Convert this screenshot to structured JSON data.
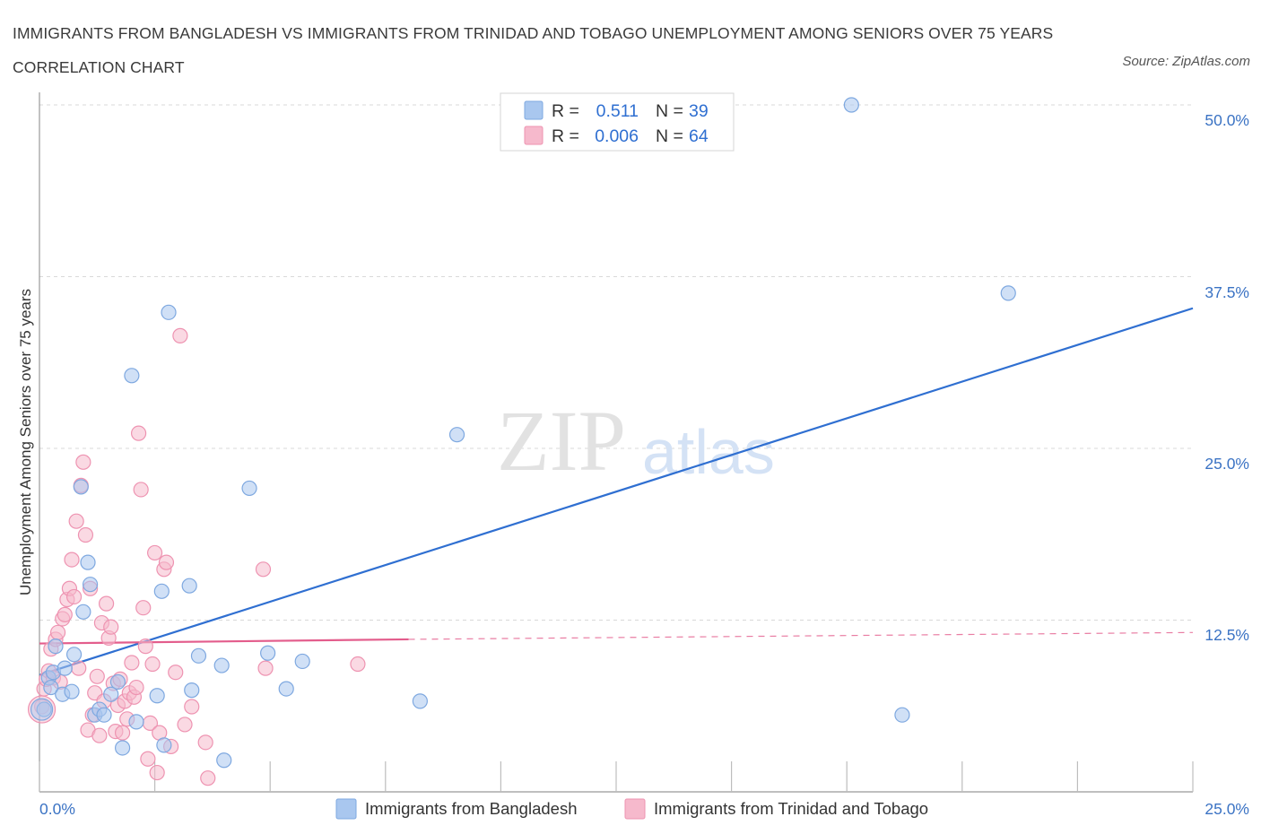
{
  "title": "IMMIGRANTS FROM BANGLADESH VS IMMIGRANTS FROM TRINIDAD AND TOBAGO UNEMPLOYMENT AMONG SENIORS OVER 75 YEARS CORRELATION CHART",
  "source": "Source: ZipAtlas.com",
  "watermark": {
    "zip": "ZIP",
    "atlas": "atlas"
  },
  "colors": {
    "blue": "#2f6fd1",
    "blue_fill": "#a9c7ef",
    "blue_stroke": "#7ea8e0",
    "pink": "#e35d8c",
    "pink_fill": "#f6b9cc",
    "pink_stroke": "#ee93b1",
    "grid": "#d9d9d9",
    "tick_text": "#3b73c4"
  },
  "legend": {
    "rows": [
      {
        "r_label": "R =",
        "r_value": "0.511",
        "n_label": "N =",
        "n_value": "39",
        "series": "bangladesh"
      },
      {
        "r_label": "R =",
        "r_value": "0.006",
        "n_label": "N =",
        "n_value": "64",
        "series": "trinidad"
      }
    ]
  },
  "bottom_legend": [
    "Immigrants from Bangladesh",
    "Immigrants from Trinidad and Tobago"
  ],
  "chart_data": {
    "type": "scatter",
    "title": "IMMIGRANTS FROM BANGLADESH VS IMMIGRANTS FROM TRINIDAD AND TOBAGO UNEMPLOYMENT AMONG SENIORS OVER 75 YEARS CORRELATION CHART",
    "xlabel": "",
    "ylabel": "Unemployment Among Seniors over 75 years",
    "xlim": [
      0,
      25
    ],
    "ylim": [
      0,
      50
    ],
    "x_tick_labels": [
      "0.0%",
      "25.0%"
    ],
    "y_tick_labels": [
      "12.5%",
      "25.0%",
      "37.5%",
      "50.0%"
    ],
    "y_tick_values": [
      12.5,
      25,
      37.5,
      50
    ],
    "series": [
      {
        "name": "Immigrants from Bangladesh",
        "color": "blue",
        "R": 0.511,
        "N": 39,
        "trend": {
          "x": [
            0,
            25
          ],
          "y": [
            8.5,
            35.2
          ],
          "style": "solid"
        },
        "points": [
          [
            0.1,
            6.0
          ],
          [
            0.2,
            8.3
          ],
          [
            0.25,
            7.6
          ],
          [
            0.3,
            8.7
          ],
          [
            0.35,
            10.6
          ],
          [
            0.5,
            7.1
          ],
          [
            0.55,
            9.0
          ],
          [
            0.7,
            7.3
          ],
          [
            0.75,
            10.0
          ],
          [
            0.9,
            22.2
          ],
          [
            0.95,
            13.1
          ],
          [
            1.05,
            16.7
          ],
          [
            1.1,
            15.1
          ],
          [
            1.2,
            5.6
          ],
          [
            1.3,
            6.0
          ],
          [
            1.4,
            5.6
          ],
          [
            1.55,
            7.1
          ],
          [
            1.7,
            8.0
          ],
          [
            1.8,
            3.2
          ],
          [
            2.0,
            30.3
          ],
          [
            2.1,
            5.1
          ],
          [
            2.55,
            7.0
          ],
          [
            2.65,
            14.6
          ],
          [
            2.7,
            3.4
          ],
          [
            2.8,
            34.9
          ],
          [
            3.25,
            15.0
          ],
          [
            3.3,
            7.4
          ],
          [
            3.45,
            9.9
          ],
          [
            3.95,
            9.2
          ],
          [
            4.0,
            2.3
          ],
          [
            4.55,
            22.1
          ],
          [
            4.95,
            10.1
          ],
          [
            5.35,
            7.5
          ],
          [
            5.7,
            9.5
          ],
          [
            8.25,
            6.6
          ],
          [
            9.05,
            26.0
          ],
          [
            17.6,
            50.0
          ],
          [
            18.7,
            5.6
          ],
          [
            21.0,
            36.3
          ]
        ]
      },
      {
        "name": "Immigrants from Trinidad and Tobago",
        "color": "pink",
        "R": 0.006,
        "N": 64,
        "trend": {
          "x": [
            0,
            8.0,
            25
          ],
          "y": [
            10.8,
            11.1,
            11.6
          ],
          "style": "solid-then-dashed"
        },
        "points": [
          [
            0.05,
            6.2
          ],
          [
            0.1,
            7.5
          ],
          [
            0.15,
            8.2
          ],
          [
            0.2,
            8.8
          ],
          [
            0.25,
            10.4
          ],
          [
            0.3,
            8.3
          ],
          [
            0.35,
            11.1
          ],
          [
            0.4,
            11.6
          ],
          [
            0.45,
            8.0
          ],
          [
            0.5,
            12.6
          ],
          [
            0.55,
            12.9
          ],
          [
            0.6,
            14.0
          ],
          [
            0.65,
            14.8
          ],
          [
            0.7,
            16.9
          ],
          [
            0.75,
            14.2
          ],
          [
            0.8,
            19.7
          ],
          [
            0.85,
            9.0
          ],
          [
            0.9,
            22.3
          ],
          [
            0.95,
            24.0
          ],
          [
            1.0,
            18.7
          ],
          [
            1.05,
            4.5
          ],
          [
            1.1,
            14.8
          ],
          [
            1.15,
            5.6
          ],
          [
            1.2,
            7.2
          ],
          [
            1.25,
            8.4
          ],
          [
            1.3,
            4.1
          ],
          [
            1.35,
            12.3
          ],
          [
            1.4,
            6.6
          ],
          [
            1.45,
            13.7
          ],
          [
            1.5,
            11.2
          ],
          [
            1.55,
            12.0
          ],
          [
            1.6,
            7.9
          ],
          [
            1.65,
            4.4
          ],
          [
            1.7,
            6.3
          ],
          [
            1.75,
            8.2
          ],
          [
            1.8,
            4.3
          ],
          [
            1.85,
            6.6
          ],
          [
            1.9,
            5.3
          ],
          [
            1.95,
            7.2
          ],
          [
            2.0,
            9.4
          ],
          [
            2.05,
            6.9
          ],
          [
            2.1,
            7.6
          ],
          [
            2.15,
            26.1
          ],
          [
            2.2,
            22.0
          ],
          [
            2.25,
            13.4
          ],
          [
            2.3,
            10.6
          ],
          [
            2.35,
            2.4
          ],
          [
            2.4,
            5.0
          ],
          [
            2.45,
            9.3
          ],
          [
            2.5,
            17.4
          ],
          [
            2.55,
            1.4
          ],
          [
            2.6,
            4.3
          ],
          [
            2.7,
            16.2
          ],
          [
            2.75,
            16.7
          ],
          [
            2.85,
            3.3
          ],
          [
            2.95,
            8.7
          ],
          [
            3.05,
            33.2
          ],
          [
            3.15,
            4.9
          ],
          [
            3.3,
            6.2
          ],
          [
            3.6,
            3.6
          ],
          [
            3.65,
            1.0
          ],
          [
            4.85,
            16.2
          ],
          [
            4.9,
            9.0
          ],
          [
            6.9,
            9.3
          ]
        ]
      }
    ]
  }
}
